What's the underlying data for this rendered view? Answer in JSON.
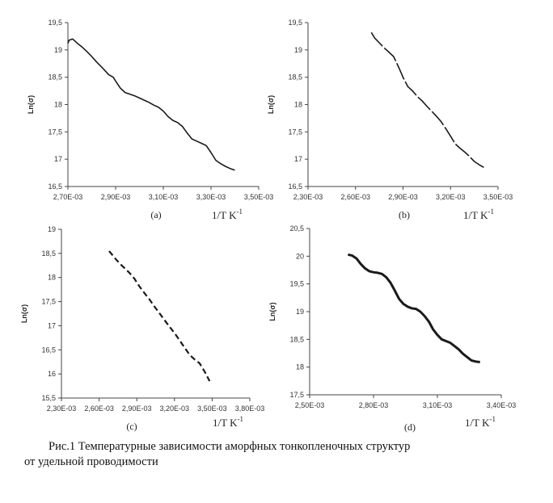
{
  "caption": {
    "line1": "Рис.1   Температурные зависимости аморфных тонкопленочных структур",
    "line2": "от удельной проводимости"
  },
  "chart_data": [
    {
      "type": "line",
      "panel_label": "(a)",
      "ylabel": "Ln(σ)",
      "xlabel": "1/T K",
      "xlabel_sup": "-1",
      "xlim": [
        0.0027,
        0.0035
      ],
      "ylim": [
        16.5,
        19.5
      ],
      "xticks": [
        "2,70E-03",
        "2,90E-03",
        "3,10E-03",
        "3,30E-03",
        "3,50E-03"
      ],
      "yticks": [
        "16,5",
        "17",
        "17,5",
        "18",
        "18,5",
        "19",
        "19,5"
      ],
      "line_style": "solid",
      "series": [
        {
          "x": [
            0.0027,
            0.002705,
            0.00272,
            0.00274,
            0.00276,
            0.00278,
            0.0028,
            0.00282,
            0.002845,
            0.00286,
            0.00287,
            0.00289,
            0.0029,
            0.00292,
            0.00294,
            0.00296,
            0.00298,
            0.003,
            0.00302,
            0.00304,
            0.00306,
            0.00308,
            0.0031,
            0.00312,
            0.00314,
            0.00316,
            0.00318,
            0.0032,
            0.00322,
            0.00324,
            0.00326,
            0.00328,
            0.0033,
            0.00332,
            0.00334,
            0.00336,
            0.00338,
            0.0034
          ],
          "y": [
            19.12,
            19.18,
            19.2,
            19.12,
            19.05,
            18.97,
            18.88,
            18.78,
            18.67,
            18.6,
            18.55,
            18.5,
            18.43,
            18.3,
            18.22,
            18.19,
            18.16,
            18.12,
            18.08,
            18.04,
            17.99,
            17.95,
            17.88,
            17.78,
            17.71,
            17.67,
            17.6,
            17.48,
            17.37,
            17.33,
            17.29,
            17.25,
            17.12,
            16.98,
            16.92,
            16.87,
            16.83,
            16.8
          ]
        }
      ]
    },
    {
      "type": "line",
      "panel_label": "(b)",
      "ylabel": "Ln(σ)",
      "xlabel": "1/T K",
      "xlabel_sup": "-1",
      "xlim": [
        0.0023,
        0.0035
      ],
      "ylim": [
        16.5,
        19.5
      ],
      "xticks": [
        "2,30E-03",
        "2,60E-03",
        "2,90E-03",
        "3,20E-03",
        "3,50E-03"
      ],
      "yticks": [
        "16,5",
        "17",
        "17,5",
        "18",
        "18,5",
        "19",
        "19,5"
      ],
      "line_style": "dashed-long",
      "series": [
        {
          "x": [
            0.0027,
            0.00272,
            0.00275,
            0.00278,
            0.00281,
            0.00284,
            0.00287,
            0.0029,
            0.00293,
            0.00296,
            0.00299,
            0.00302,
            0.00305,
            0.00308,
            0.00311,
            0.00314,
            0.00317,
            0.0032,
            0.00323,
            0.00326,
            0.00329,
            0.00332,
            0.00335,
            0.00338,
            0.00341
          ],
          "y": [
            19.32,
            19.22,
            19.13,
            19.04,
            18.96,
            18.88,
            18.7,
            18.5,
            18.33,
            18.25,
            18.15,
            18.07,
            17.97,
            17.88,
            17.79,
            17.69,
            17.56,
            17.42,
            17.28,
            17.2,
            17.13,
            17.05,
            16.96,
            16.9,
            16.85
          ]
        }
      ]
    },
    {
      "type": "line",
      "panel_label": "(c)",
      "ylabel": "Ln(σ)",
      "xlabel": "1/T K",
      "xlabel_sup": "-1",
      "xlim": [
        0.0023,
        0.0038
      ],
      "ylim": [
        15.5,
        19
      ],
      "xticks": [
        "2,30E-03",
        "2,60E-03",
        "2,90E-03",
        "3,20E-03",
        "3,50E-03",
        "3,80E-03"
      ],
      "yticks": [
        "15,5",
        "16",
        "16,5",
        "17",
        "17,5",
        "18",
        "18,5",
        "19"
      ],
      "line_style": "dashed",
      "series": [
        {
          "x": [
            0.00268,
            0.00272,
            0.00276,
            0.0028,
            0.00284,
            0.00288,
            0.00292,
            0.00296,
            0.003,
            0.00304,
            0.00308,
            0.00312,
            0.00316,
            0.0032,
            0.00324,
            0.00328,
            0.00332,
            0.00336,
            0.0034,
            0.00344,
            0.00348
          ],
          "y": [
            18.55,
            18.42,
            18.3,
            18.2,
            18.1,
            17.98,
            17.82,
            17.68,
            17.55,
            17.4,
            17.26,
            17.12,
            16.98,
            16.85,
            16.7,
            16.55,
            16.4,
            16.3,
            16.22,
            16.05,
            15.85
          ]
        }
      ]
    },
    {
      "type": "line",
      "panel_label": "(d)",
      "ylabel": "Ln(σ)",
      "xlabel": "1/T K",
      "xlabel_sup": "-1",
      "xlim": [
        0.0025,
        0.0034
      ],
      "ylim": [
        17.5,
        20.5
      ],
      "xticks": [
        "2,50E-03",
        "2,80E-03",
        "3,10E-03",
        "3,40E-03"
      ],
      "yticks": [
        "17,5",
        "18",
        "18,5",
        "19",
        "19,5",
        "20",
        "20,5"
      ],
      "line_style": "solid-thick",
      "series": [
        {
          "x": [
            0.00268,
            0.0027,
            0.00272,
            0.00274,
            0.00276,
            0.00278,
            0.0028,
            0.00282,
            0.00284,
            0.00286,
            0.00288,
            0.0029,
            0.00292,
            0.00294,
            0.00296,
            0.00298,
            0.003,
            0.00302,
            0.00304,
            0.00306,
            0.00308,
            0.0031,
            0.00312,
            0.00314,
            0.00316,
            0.00318,
            0.0032,
            0.00322,
            0.00324,
            0.00326,
            0.00328,
            0.0033
          ],
          "y": [
            20.03,
            20.01,
            19.96,
            19.86,
            19.78,
            19.73,
            19.71,
            19.7,
            19.68,
            19.62,
            19.52,
            19.38,
            19.23,
            19.14,
            19.09,
            19.06,
            19.05,
            19.0,
            18.92,
            18.82,
            18.68,
            18.58,
            18.5,
            18.47,
            18.44,
            18.38,
            18.32,
            18.24,
            18.18,
            18.12,
            18.1,
            18.09
          ]
        }
      ]
    }
  ]
}
